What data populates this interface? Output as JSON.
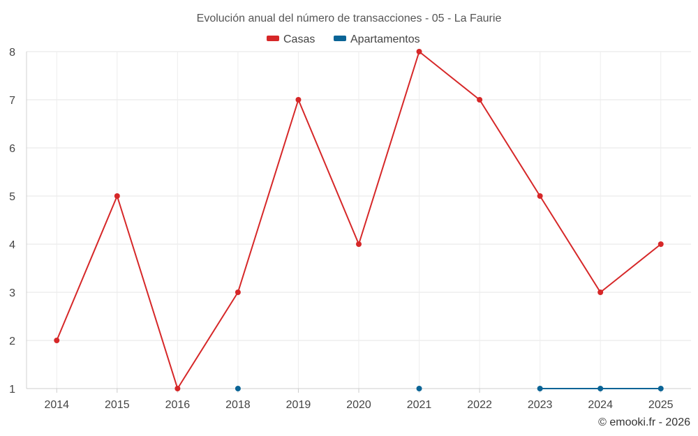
{
  "chart_data": {
    "type": "line",
    "title": "Evolución anual del número de transacciones - 05 - La Faurie",
    "categories": [
      "2014",
      "2015",
      "2016",
      "2018",
      "2019",
      "2020",
      "2021",
      "2022",
      "2023",
      "2024",
      "2025"
    ],
    "ylim": [
      1,
      8
    ],
    "yticks": [
      1,
      2,
      3,
      4,
      5,
      6,
      7,
      8
    ],
    "grid": true,
    "legend_position": "top-center",
    "series": [
      {
        "name": "Casas",
        "color": "#d62728",
        "values": [
          2,
          5,
          1,
          3,
          7,
          4,
          8,
          7,
          5,
          3,
          4
        ]
      },
      {
        "name": "Apartamentos",
        "color": "#0a6496",
        "values": [
          null,
          null,
          null,
          1,
          null,
          null,
          1,
          null,
          1,
          1,
          1
        ]
      }
    ]
  },
  "credit": "© emooki.fr - 2026"
}
